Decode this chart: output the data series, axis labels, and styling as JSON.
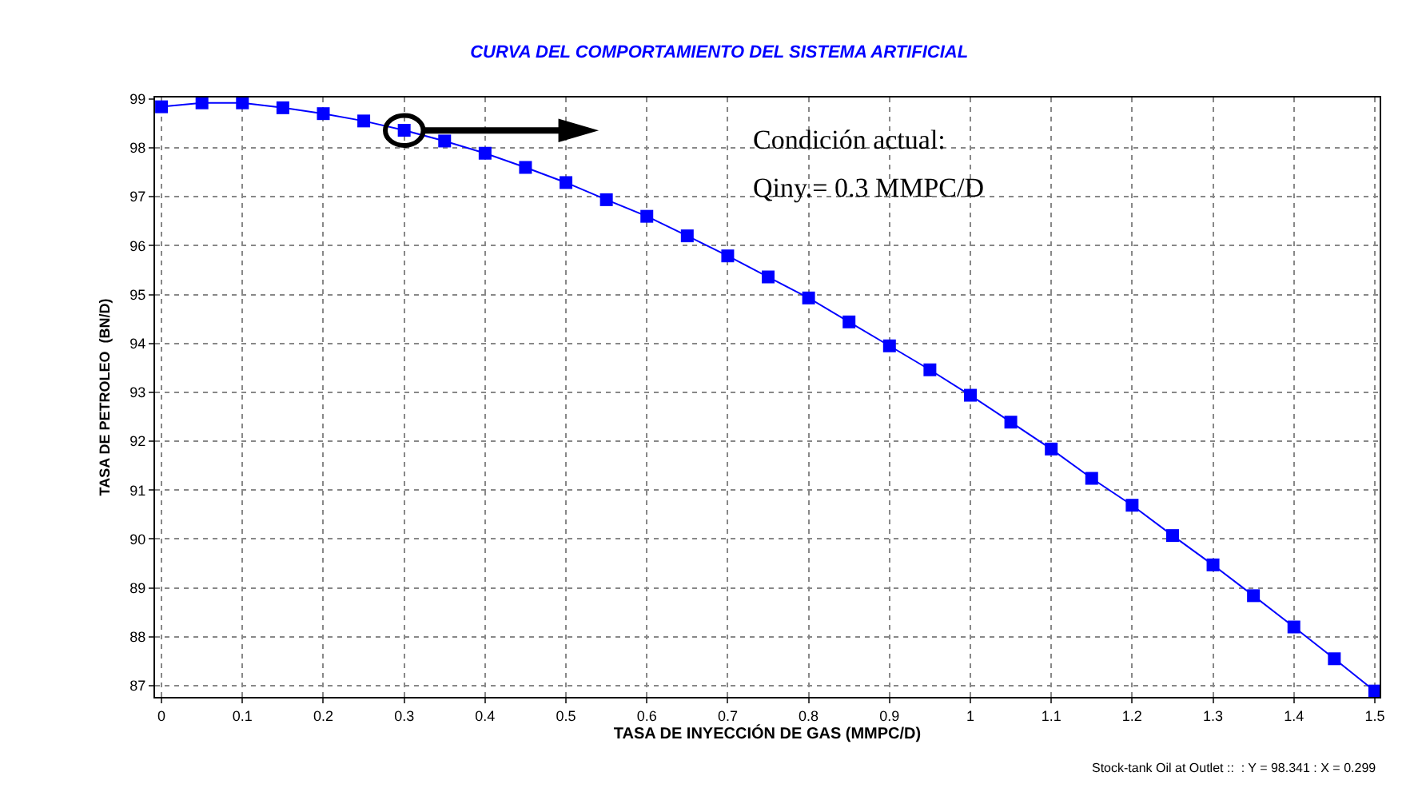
{
  "chart_data": {
    "type": "line",
    "title": "CURVA DEL COMPORTAMIENTO DEL SISTEMA ARTIFICIAL",
    "xlabel": "TASA DE INYECCIÓN DE GAS (MMPC/D)",
    "ylabel": "TASA DE PETROLEO  (BN/D)",
    "x": [
      0,
      0.05,
      0.1,
      0.15,
      0.2,
      0.25,
      0.3,
      0.35,
      0.4,
      0.45,
      0.5,
      0.55,
      0.6,
      0.65,
      0.7,
      0.75,
      0.8,
      0.85,
      0.9,
      0.95,
      1.0,
      1.05,
      1.1,
      1.15,
      1.2,
      1.25,
      1.3,
      1.35,
      1.4,
      1.45,
      1.5
    ],
    "series": [
      {
        "color": "#0000ff",
        "values": [
          98.84,
          98.92,
          98.92,
          98.82,
          98.7,
          98.55,
          98.36,
          98.14,
          97.89,
          97.6,
          97.29,
          96.94,
          96.6,
          96.2,
          95.79,
          95.36,
          94.93,
          94.44,
          93.95,
          93.46,
          92.94,
          92.39,
          91.84,
          91.24,
          90.69,
          90.07,
          89.47,
          88.84,
          88.2,
          87.55,
          86.89
        ]
      }
    ],
    "xlim": [
      -0.008,
      1.506
    ],
    "ylim": [
      86.77,
      99.03
    ],
    "xticks": [
      0,
      0.1,
      0.2,
      0.3,
      0.4,
      0.5,
      0.6,
      0.7,
      0.8,
      0.9,
      1,
      1.1,
      1.2,
      1.3,
      1.4,
      1.5
    ],
    "yticks": [
      87,
      88,
      89,
      90,
      91,
      92,
      93,
      94,
      95,
      96,
      97,
      98,
      99
    ],
    "grid": true,
    "marker": "square",
    "line_style": "solid",
    "legend": false,
    "annotations": [
      "Condición actual:",
      "Qiny.= 0.3 MMPC/D",
      "Stock-tank Oil at Outlet ::  : Y = 98.341 : X = 0.299"
    ]
  }
}
